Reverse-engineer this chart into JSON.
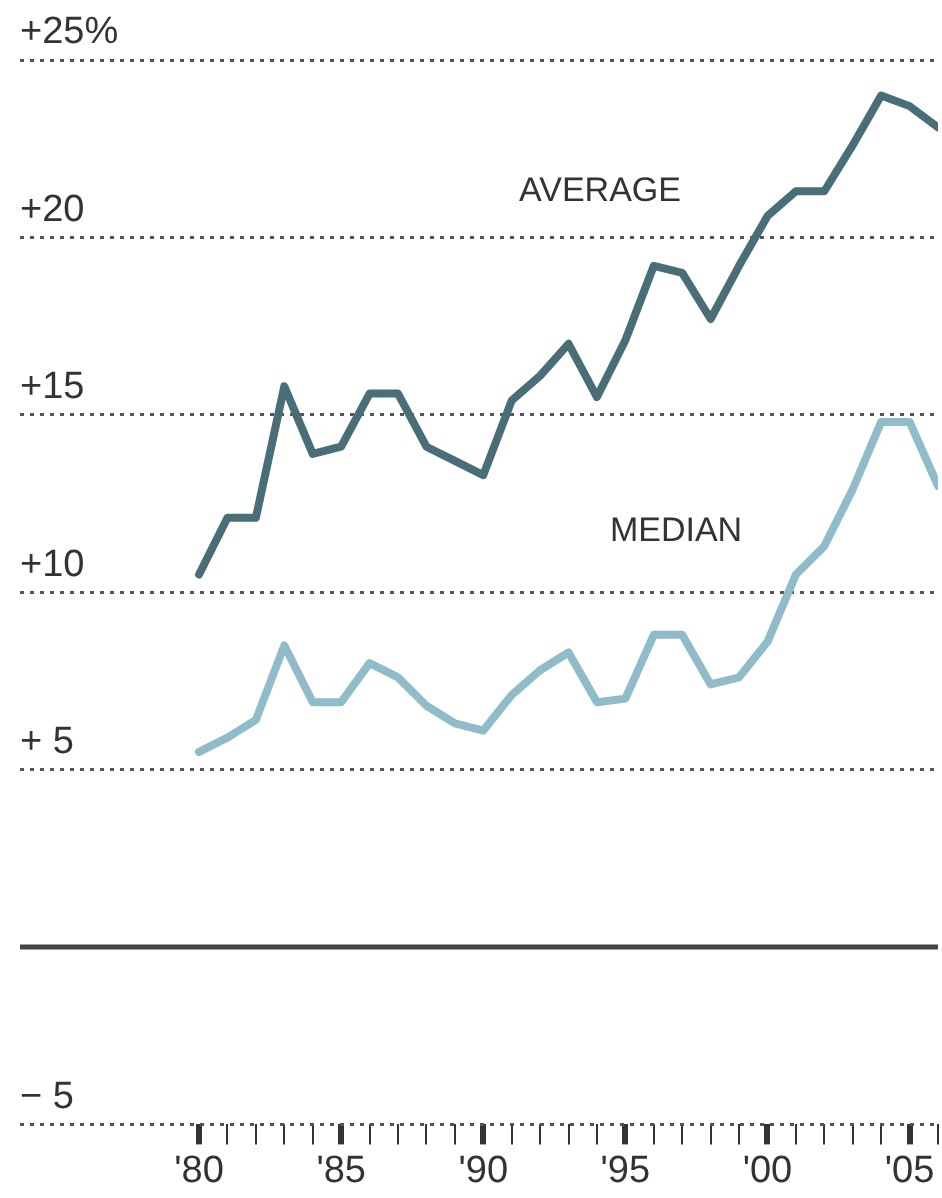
{
  "chart_data": {
    "type": "line",
    "x": [
      1980,
      1981,
      1982,
      1983,
      1984,
      1985,
      1986,
      1987,
      1988,
      1989,
      1990,
      1991,
      1992,
      1993,
      1994,
      1995,
      1996,
      1997,
      1998,
      1999,
      2000,
      2001,
      2002,
      2003,
      2004,
      2005,
      2006
    ],
    "series": [
      {
        "name": "AVERAGE",
        "color": "#4a6e78",
        "values": [
          10.5,
          12.1,
          12.1,
          15.8,
          13.9,
          14.1,
          15.6,
          15.6,
          14.1,
          13.7,
          13.3,
          15.4,
          16.1,
          17.0,
          15.5,
          17.1,
          19.2,
          19.0,
          17.7,
          19.2,
          20.6,
          21.3,
          21.3,
          22.6,
          24.0,
          23.7,
          23.1
        ]
      },
      {
        "name": "MEDIAN",
        "color": "#8fbcc8",
        "values": [
          5.5,
          5.9,
          6.4,
          8.5,
          6.9,
          6.9,
          8.0,
          7.6,
          6.8,
          6.3,
          6.1,
          7.1,
          7.8,
          8.3,
          6.9,
          7.0,
          8.8,
          8.8,
          7.4,
          7.6,
          8.6,
          10.5,
          11.3,
          12.9,
          14.8,
          14.8,
          13.0
        ]
      }
    ],
    "xlim": [
      1973.7,
      2006
    ],
    "xticks": [
      {
        "value": 1980,
        "label": "'80"
      },
      {
        "value": 1981,
        "label": null
      },
      {
        "value": 1982,
        "label": null
      },
      {
        "value": 1983,
        "label": null
      },
      {
        "value": 1984,
        "label": null
      },
      {
        "value": 1985,
        "label": "'85"
      },
      {
        "value": 1986,
        "label": null
      },
      {
        "value": 1987,
        "label": null
      },
      {
        "value": 1988,
        "label": null
      },
      {
        "value": 1989,
        "label": null
      },
      {
        "value": 1990,
        "label": "'90"
      },
      {
        "value": 1991,
        "label": null
      },
      {
        "value": 1992,
        "label": null
      },
      {
        "value": 1993,
        "label": null
      },
      {
        "value": 1994,
        "label": null
      },
      {
        "value": 1995,
        "label": "'95"
      },
      {
        "value": 1996,
        "label": null
      },
      {
        "value": 1997,
        "label": null
      },
      {
        "value": 1998,
        "label": null
      },
      {
        "value": 1999,
        "label": null
      },
      {
        "value": 2000,
        "label": "'00"
      },
      {
        "value": 2001,
        "label": null
      },
      {
        "value": 2002,
        "label": null
      },
      {
        "value": 2003,
        "label": null
      },
      {
        "value": 2004,
        "label": null
      },
      {
        "value": 2005,
        "label": "'05"
      },
      {
        "value": 2006,
        "label": null
      }
    ],
    "ylim": [
      -5,
      25
    ],
    "yticks": [
      {
        "value": -5,
        "label": "− 5"
      },
      {
        "value": 0,
        "label": null
      },
      {
        "value": 5,
        "label": "+ 5"
      },
      {
        "value": 10,
        "label": "+10"
      },
      {
        "value": 15,
        "label": "+15"
      },
      {
        "value": 20,
        "label": "+20"
      },
      {
        "value": 25,
        "label": "+25%"
      }
    ],
    "ref_lines": [
      {
        "axis": "y",
        "value": 0,
        "color": "#444444",
        "line_style": "solid"
      }
    ],
    "grid": "y",
    "legend": false,
    "marker": "none",
    "line_style": "solid"
  }
}
